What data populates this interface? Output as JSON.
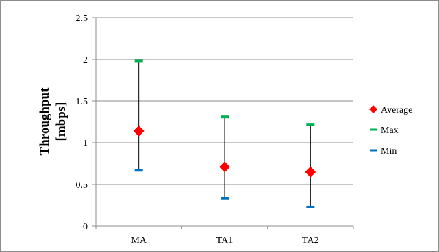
{
  "chart_data": {
    "type": "scatter",
    "title": "",
    "xlabel": "",
    "ylabel_lines": [
      "Throughput",
      "[mbps]"
    ],
    "categories": [
      "MA",
      "TA1",
      "TA2"
    ],
    "ylim": [
      0,
      2.5
    ],
    "y_ticks": [
      0,
      0.5,
      1,
      1.5,
      2,
      2.5
    ],
    "y_tick_labels": [
      "0",
      "0.5",
      "1",
      "1.5",
      "2",
      "2.5"
    ],
    "grid": true,
    "legend_position": "right",
    "series": [
      {
        "name": "Average",
        "values": [
          1.14,
          0.71,
          0.65
        ],
        "color": "#ff0000",
        "marker": "diamond"
      },
      {
        "name": "Max",
        "values": [
          1.98,
          1.31,
          1.22
        ],
        "color": "#00b050",
        "marker": "dash"
      },
      {
        "name": "Min",
        "values": [
          0.67,
          0.33,
          0.23
        ],
        "color": "#0070c0",
        "marker": "dash"
      }
    ],
    "colors": {
      "grid": "#8c8c8c",
      "axis": "#8c8c8c",
      "whisker": "#000000",
      "frame": "#8c8c8c"
    }
  }
}
